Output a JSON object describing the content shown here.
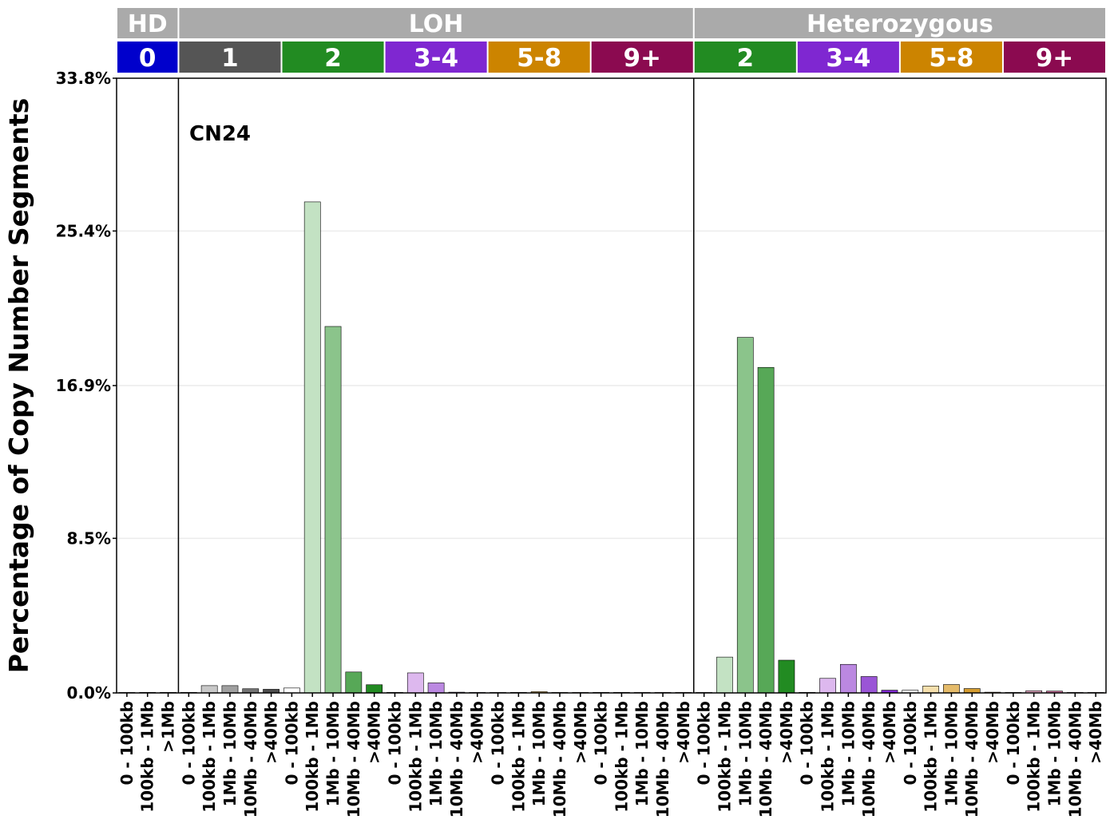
{
  "chart_data": {
    "type": "bar",
    "title": "",
    "xlabel": "",
    "ylabel": "Percentage of Copy Number Segments",
    "annotation": "CN24",
    "ylim": [
      0,
      33.8
    ],
    "y_ticks": [
      "0.0%",
      "8.5%",
      "16.9%",
      "25.4%",
      "33.8%"
    ],
    "y_tick_values": [
      0,
      8.5,
      16.9,
      25.4,
      33.8
    ],
    "grid": true,
    "legend": "none",
    "top_groups": [
      {
        "label": "HD",
        "color": "#aaaaaa",
        "span": [
          0,
          3
        ]
      },
      {
        "label": "LOH",
        "color": "#aaaaaa",
        "span": [
          3,
          28
        ]
      },
      {
        "label": "Heterozygous",
        "color": "#aaaaaa",
        "span": [
          28,
          48
        ]
      }
    ],
    "cn_groups": [
      {
        "label": "0",
        "color": "#0000cc",
        "span": [
          0,
          3
        ]
      },
      {
        "label": "1",
        "color": "#555555",
        "span": [
          3,
          8
        ]
      },
      {
        "label": "2",
        "color": "#228b22",
        "span": [
          8,
          13
        ]
      },
      {
        "label": "3-4",
        "color": "#7f27d1",
        "span": [
          13,
          18
        ]
      },
      {
        "label": "5-8",
        "color": "#cc8400",
        "span": [
          18,
          23
        ]
      },
      {
        "label": "9+",
        "color": "#8b0a50",
        "span": [
          23,
          28
        ]
      },
      {
        "label": "2",
        "color": "#228b22",
        "span": [
          28,
          33
        ]
      },
      {
        "label": "3-4",
        "color": "#7f27d1",
        "span": [
          33,
          38
        ]
      },
      {
        "label": "5-8",
        "color": "#cc8400",
        "span": [
          38,
          43
        ]
      },
      {
        "label": "9+",
        "color": "#8b0a50",
        "span": [
          43,
          48
        ]
      }
    ],
    "panel_dividers": [
      3,
      28
    ],
    "categories": [
      "0 - 100kb",
      "100kb - 1Mb",
      ">1Mb",
      "0 - 100kb",
      "100kb - 1Mb",
      "1Mb - 10Mb",
      "10Mb - 40Mb",
      ">40Mb",
      "0 - 100kb",
      "100kb - 1Mb",
      "1Mb - 10Mb",
      "10Mb - 40Mb",
      ">40Mb",
      "0 - 100kb",
      "100kb - 1Mb",
      "1Mb - 10Mb",
      "10Mb - 40Mb",
      ">40Mb",
      "0 - 100kb",
      "100kb - 1Mb",
      "1Mb - 10Mb",
      "10Mb - 40Mb",
      ">40Mb",
      "0 - 100kb",
      "100kb - 1Mb",
      "1Mb - 10Mb",
      "10Mb - 40Mb",
      ">40Mb",
      "0 - 100kb",
      "100kb - 1Mb",
      "1Mb - 10Mb",
      "10Mb - 40Mb",
      ">40Mb",
      "0 - 100kb",
      "100kb - 1Mb",
      "1Mb - 10Mb",
      "10Mb - 40Mb",
      ">40Mb",
      "0 - 100kb",
      "100kb - 1Mb",
      "1Mb - 10Mb",
      "10Mb - 40Mb",
      ">40Mb",
      "0 - 100kb",
      "100kb - 1Mb",
      "1Mb - 10Mb",
      "10Mb - 40Mb",
      ">40Mb"
    ],
    "values": [
      0.0,
      0.03,
      0.03,
      0.03,
      0.4,
      0.4,
      0.23,
      0.2,
      0.27,
      27.0,
      20.15,
      1.15,
      0.45,
      0.03,
      1.1,
      0.55,
      0.04,
      0.02,
      0.0,
      0.03,
      0.07,
      0.0,
      0.0,
      0.03,
      0.03,
      0.0,
      0.0,
      0.0,
      0.0,
      1.97,
      19.55,
      17.9,
      1.8,
      0.03,
      0.8,
      1.57,
      0.9,
      0.15,
      0.15,
      0.38,
      0.46,
      0.24,
      0.04,
      0.02,
      0.12,
      0.1,
      0.0,
      0.0
    ],
    "bar_colors": [
      "#ffffff",
      "#ffffff",
      "#ffffff",
      "#ffffff",
      "#c8c8c8",
      "#a0a0a0",
      "#737373",
      "#4d4d4d",
      "#ffffff",
      "#c3e2c3",
      "#8bc48b",
      "#57a857",
      "#228b22",
      "#ffffff",
      "#ddb8ee",
      "#bb88e1",
      "#9a55d6",
      "#7f27d1",
      "#ffffff",
      "#f5dfac",
      "#e5bb6a",
      "#d49c30",
      "#cc8400",
      "#ffffff",
      "#e2a8c1",
      "#c96b98",
      "#a83371",
      "#8b0a50",
      "#ffffff",
      "#c3e2c3",
      "#8bc48b",
      "#57a857",
      "#228b22",
      "#ffffff",
      "#ddb8ee",
      "#bb88e1",
      "#9a55d6",
      "#7f27d1",
      "#ffffff",
      "#f5dfac",
      "#e5bb6a",
      "#d49c30",
      "#cc8400",
      "#ffffff",
      "#e2a8c1",
      "#c96b98",
      "#a83371",
      "#8b0a50"
    ]
  }
}
